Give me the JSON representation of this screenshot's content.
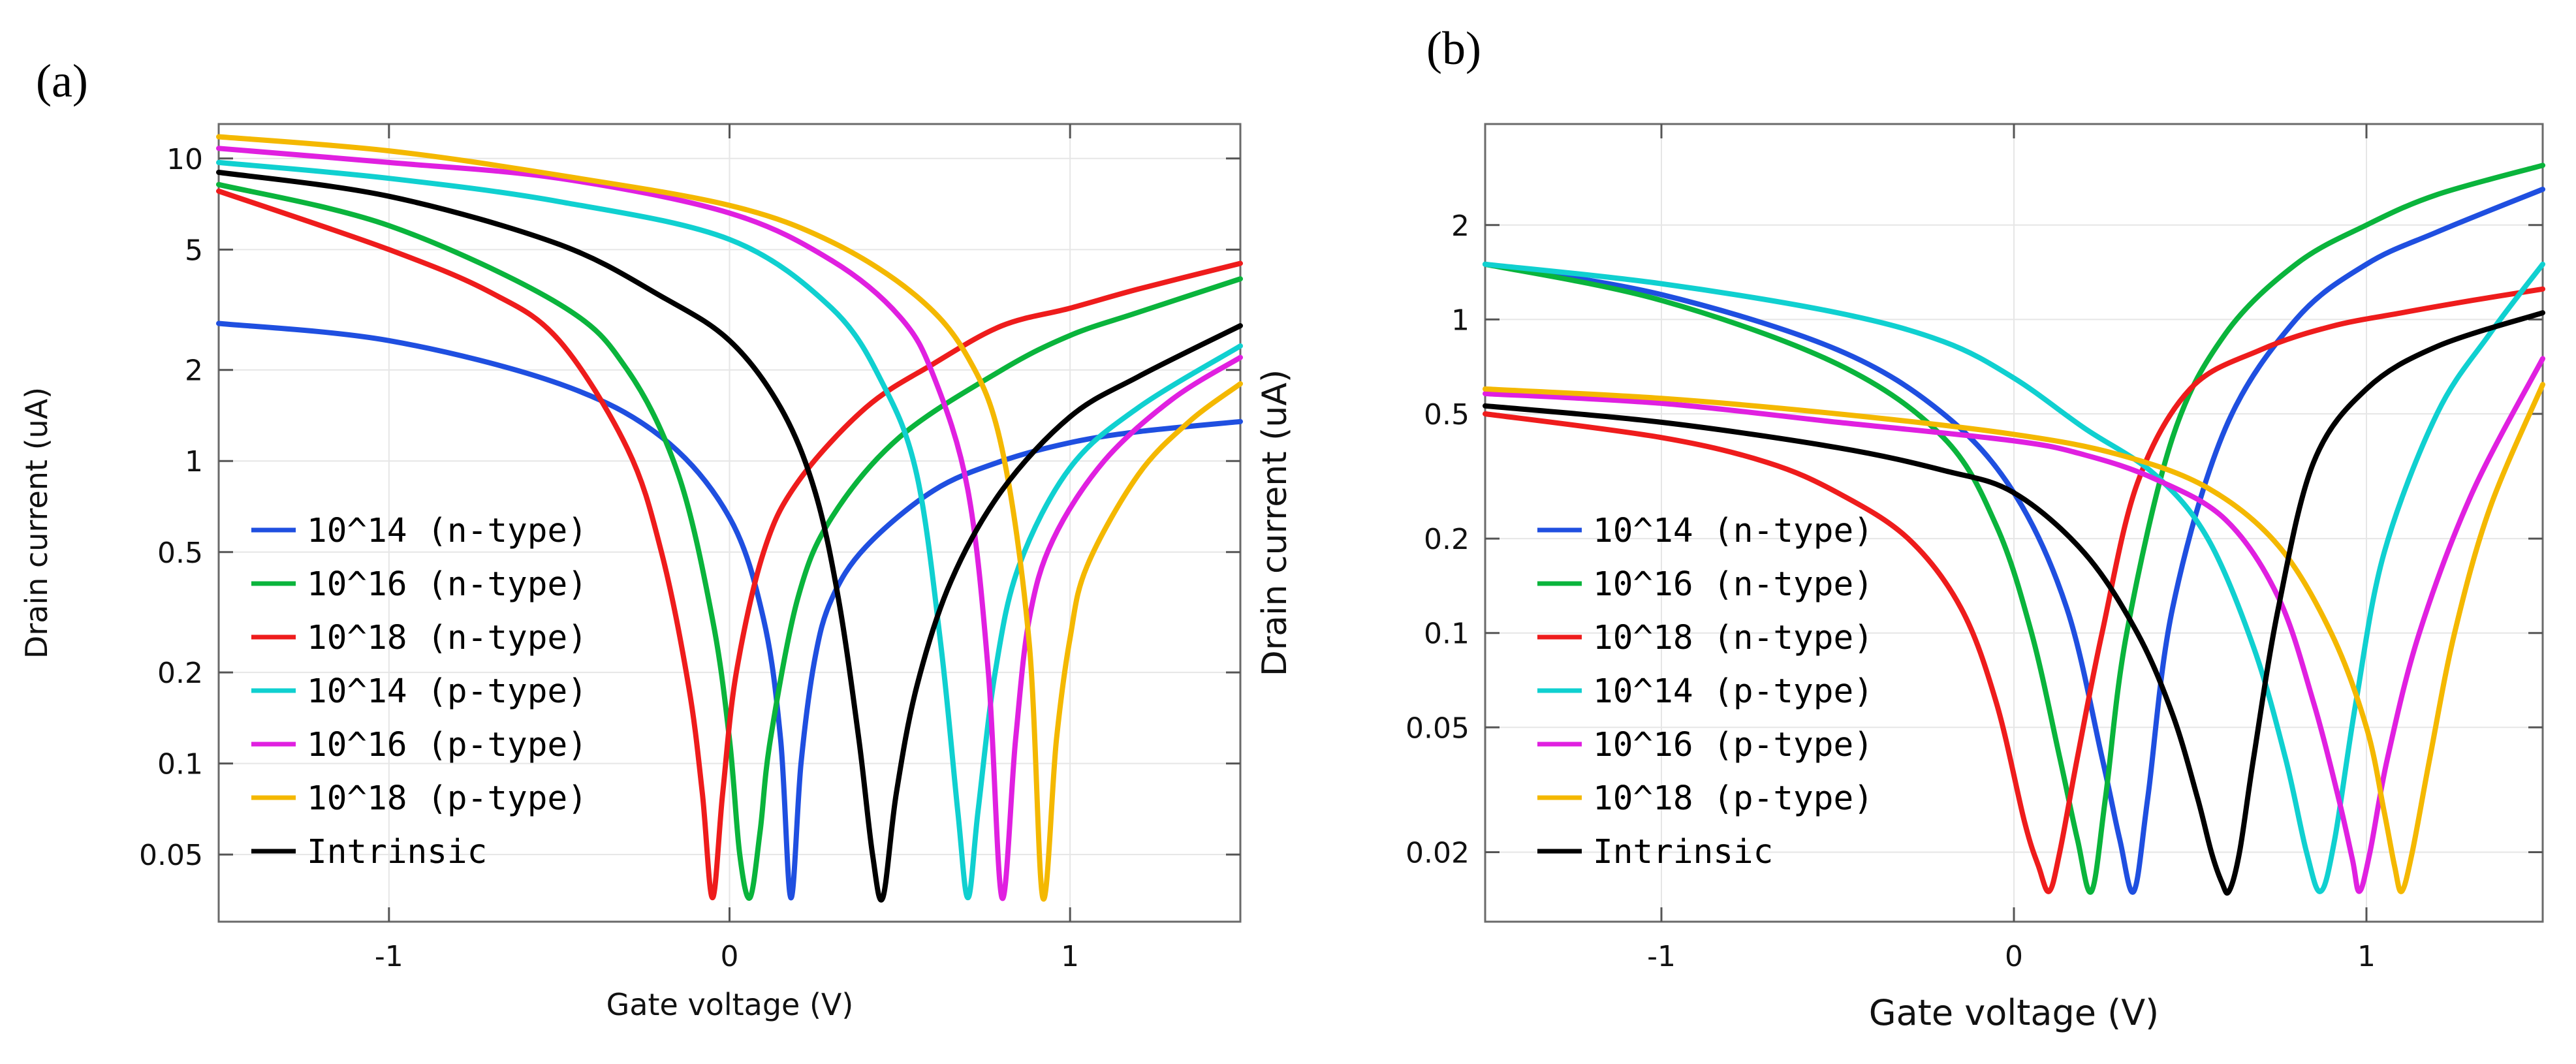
{
  "chart_data": [
    {
      "panel": "(a)",
      "type": "line",
      "xlabel": "Gate voltage (V)",
      "ylabel": "Drain current (uA)",
      "yscale": "log",
      "xlim": [
        -1.5,
        1.5
      ],
      "ylim": [
        0.03,
        13
      ],
      "x_ticks": [
        -1,
        0,
        1
      ],
      "x_tick_labels": [
        "-1",
        "0",
        "1"
      ],
      "y_ticks": [
        0.05,
        0.1,
        0.2,
        0.5,
        1,
        2,
        5,
        10
      ],
      "y_tick_labels": [
        "0.05",
        "0.1",
        "0.2",
        "0.5",
        "1",
        "2",
        "5",
        "10"
      ],
      "legend_position": "bottom-left",
      "series": [
        {
          "name": "10^14 (n-type)",
          "color": "#1f4fe0",
          "x": [
            -1.5,
            -1,
            -0.5,
            -0.2,
            0,
            0.1,
            0.15,
            0.18,
            0.21,
            0.25,
            0.3,
            0.4,
            0.6,
            0.8,
            1,
            1.2,
            1.5
          ],
          "y": [
            2.85,
            2.5,
            1.8,
            1.2,
            0.65,
            0.3,
            0.12,
            0.036,
            0.1,
            0.22,
            0.35,
            0.52,
            0.8,
            1,
            1.15,
            1.25,
            1.35
          ]
        },
        {
          "name": "10^16 (n-type)",
          "color": "#0ab43c",
          "x": [
            -1.5,
            -1,
            -0.5,
            -0.3,
            -0.15,
            -0.05,
            0,
            0.03,
            0.06,
            0.09,
            0.12,
            0.2,
            0.3,
            0.5,
            0.8,
            1,
            1.2,
            1.5
          ],
          "y": [
            8.2,
            6,
            3.3,
            2,
            0.9,
            0.3,
            0.12,
            0.05,
            0.036,
            0.06,
            0.12,
            0.35,
            0.65,
            1.2,
            2,
            2.6,
            3.1,
            4
          ]
        },
        {
          "name": "10^18 (n-type)",
          "color": "#ee1c1c",
          "x": [
            -1.5,
            -1,
            -0.7,
            -0.5,
            -0.3,
            -0.2,
            -0.12,
            -0.08,
            -0.05,
            -0.02,
            0.02,
            0.1,
            0.2,
            0.4,
            0.6,
            0.8,
            1,
            1.2,
            1.5
          ],
          "y": [
            7.8,
            5,
            3.6,
            2.5,
            1.1,
            0.5,
            0.18,
            0.08,
            0.036,
            0.08,
            0.2,
            0.5,
            0.85,
            1.5,
            2.1,
            2.8,
            3.2,
            3.7,
            4.5
          ]
        },
        {
          "name": "10^14 (p-type)",
          "color": "#10d0d0",
          "x": [
            -1.5,
            -1,
            -0.5,
            0,
            0.3,
            0.45,
            0.55,
            0.62,
            0.67,
            0.7,
            0.73,
            0.78,
            0.85,
            1,
            1.2,
            1.5
          ],
          "y": [
            9.7,
            8.6,
            7.2,
            5.4,
            3.2,
            1.8,
            0.9,
            0.25,
            0.07,
            0.036,
            0.07,
            0.2,
            0.45,
            0.95,
            1.5,
            2.4
          ]
        },
        {
          "name": "10^16 (p-type)",
          "color": "#e020e0",
          "x": [
            -1.5,
            -1,
            -0.5,
            0,
            0.3,
            0.5,
            0.6,
            0.7,
            0.76,
            0.8,
            0.84,
            0.88,
            0.95,
            1.1,
            1.3,
            1.5
          ],
          "y": [
            10.8,
            9.7,
            8.6,
            6.6,
            4.6,
            3,
            1.9,
            0.8,
            0.2,
            0.036,
            0.12,
            0.3,
            0.55,
            1,
            1.6,
            2.2
          ]
        },
        {
          "name": "10^18 (p-type)",
          "color": "#f4b800",
          "x": [
            -1.5,
            -1,
            -0.5,
            0,
            0.3,
            0.55,
            0.7,
            0.8,
            0.88,
            0.92,
            0.96,
            1,
            1.05,
            1.2,
            1.35,
            1.5
          ],
          "y": [
            11.8,
            10.6,
            8.8,
            7,
            5.3,
            3.5,
            2.2,
            1.1,
            0.25,
            0.036,
            0.12,
            0.26,
            0.45,
            0.9,
            1.35,
            1.8
          ]
        },
        {
          "name": "Intrinsic",
          "color": "#000000",
          "x": [
            -1.5,
            -1,
            -0.5,
            -0.2,
            0,
            0.15,
            0.25,
            0.32,
            0.38,
            0.42,
            0.45,
            0.49,
            0.55,
            0.65,
            0.8,
            1,
            1.2,
            1.5
          ],
          "y": [
            9,
            7.5,
            5.2,
            3.5,
            2.5,
            1.5,
            0.8,
            0.35,
            0.12,
            0.05,
            0.036,
            0.08,
            0.18,
            0.4,
            0.8,
            1.4,
            1.9,
            2.8
          ]
        }
      ]
    },
    {
      "panel": "(b)",
      "type": "line",
      "xlabel": "Gate voltage  (V)",
      "ylabel": "Drain current (uA)",
      "yscale": "log",
      "xlim": [
        -1.5,
        1.5
      ],
      "ylim": [
        0.012,
        4.2
      ],
      "x_ticks": [
        -1,
        0,
        1
      ],
      "x_tick_labels": [
        "-1",
        "0",
        "1"
      ],
      "y_ticks": [
        0.02,
        0.05,
        0.1,
        0.2,
        0.5,
        1,
        2
      ],
      "y_tick_labels": [
        "0.02",
        "0.05",
        "0.1",
        "0.2",
        "0.5",
        "1",
        "2"
      ],
      "legend_position": "bottom-left",
      "series": [
        {
          "name": "10^14 (n-type)",
          "color": "#1f4fe0",
          "x": [
            -1.5,
            -1,
            -0.5,
            -0.2,
            0,
            0.15,
            0.25,
            0.3,
            0.34,
            0.38,
            0.45,
            0.6,
            0.8,
            1,
            1.2,
            1.5
          ],
          "y": [
            1.5,
            1.2,
            0.8,
            0.5,
            0.28,
            0.12,
            0.04,
            0.022,
            0.015,
            0.03,
            0.12,
            0.45,
            1,
            1.5,
            1.9,
            2.6
          ]
        },
        {
          "name": "10^16 (n-type)",
          "color": "#0ab43c",
          "x": [
            -1.5,
            -1,
            -0.5,
            -0.2,
            -0.05,
            0.05,
            0.13,
            0.18,
            0.22,
            0.26,
            0.32,
            0.45,
            0.6,
            0.8,
            1,
            1.2,
            1.5
          ],
          "y": [
            1.5,
            1.15,
            0.72,
            0.42,
            0.22,
            0.1,
            0.04,
            0.022,
            0.015,
            0.03,
            0.1,
            0.42,
            0.9,
            1.5,
            2,
            2.5,
            3.1
          ]
        },
        {
          "name": "10^18 (n-type)",
          "color": "#ee1c1c",
          "x": [
            -1.5,
            -1,
            -0.7,
            -0.5,
            -0.3,
            -0.15,
            -0.05,
            0.03,
            0.07,
            0.1,
            0.13,
            0.18,
            0.25,
            0.35,
            0.5,
            0.7,
            0.9,
            1.1,
            1.3,
            1.5
          ],
          "y": [
            0.5,
            0.42,
            0.35,
            0.28,
            0.2,
            0.12,
            0.06,
            0.025,
            0.018,
            0.015,
            0.02,
            0.04,
            0.1,
            0.3,
            0.6,
            0.8,
            0.95,
            1.05,
            1.15,
            1.25
          ]
        },
        {
          "name": "10^14 (p-type)",
          "color": "#10d0d0",
          "x": [
            -1.5,
            -1,
            -0.5,
            -0.2,
            0,
            0.2,
            0.4,
            0.55,
            0.68,
            0.77,
            0.83,
            0.87,
            0.91,
            0.97,
            1.05,
            1.2,
            1.35,
            1.5
          ],
          "y": [
            1.5,
            1.3,
            1.05,
            0.85,
            0.65,
            0.45,
            0.32,
            0.2,
            0.09,
            0.04,
            0.02,
            0.015,
            0.022,
            0.06,
            0.18,
            0.5,
            0.9,
            1.5
          ]
        },
        {
          "name": "10^16 (p-type)",
          "color": "#e020e0",
          "x": [
            -1.5,
            -1,
            -0.5,
            0,
            0.2,
            0.4,
            0.6,
            0.75,
            0.85,
            0.92,
            0.96,
            0.98,
            1.01,
            1.06,
            1.15,
            1.3,
            1.5
          ],
          "y": [
            0.58,
            0.54,
            0.47,
            0.41,
            0.37,
            0.31,
            0.23,
            0.13,
            0.06,
            0.03,
            0.019,
            0.015,
            0.02,
            0.04,
            0.1,
            0.28,
            0.75
          ]
        },
        {
          "name": "10^18 (p-type)",
          "color": "#f4b800",
          "x": [
            -1.5,
            -1,
            -0.5,
            0,
            0.3,
            0.55,
            0.75,
            0.9,
            1,
            1.05,
            1.08,
            1.1,
            1.13,
            1.18,
            1.25,
            1.35,
            1.5
          ],
          "y": [
            0.6,
            0.56,
            0.5,
            0.43,
            0.37,
            0.29,
            0.19,
            0.1,
            0.05,
            0.027,
            0.018,
            0.015,
            0.02,
            0.04,
            0.1,
            0.25,
            0.62
          ]
        },
        {
          "name": "Intrinsic",
          "color": "#000000",
          "x": [
            -1.5,
            -1,
            -0.5,
            -0.2,
            0,
            0.2,
            0.35,
            0.45,
            0.52,
            0.56,
            0.59,
            0.61,
            0.64,
            0.68,
            0.75,
            0.85,
            1,
            1.2,
            1.5
          ],
          "y": [
            0.53,
            0.47,
            0.39,
            0.33,
            0.28,
            0.18,
            0.1,
            0.055,
            0.03,
            0.02,
            0.016,
            0.015,
            0.02,
            0.04,
            0.12,
            0.35,
            0.6,
            0.82,
            1.05
          ]
        }
      ]
    }
  ]
}
